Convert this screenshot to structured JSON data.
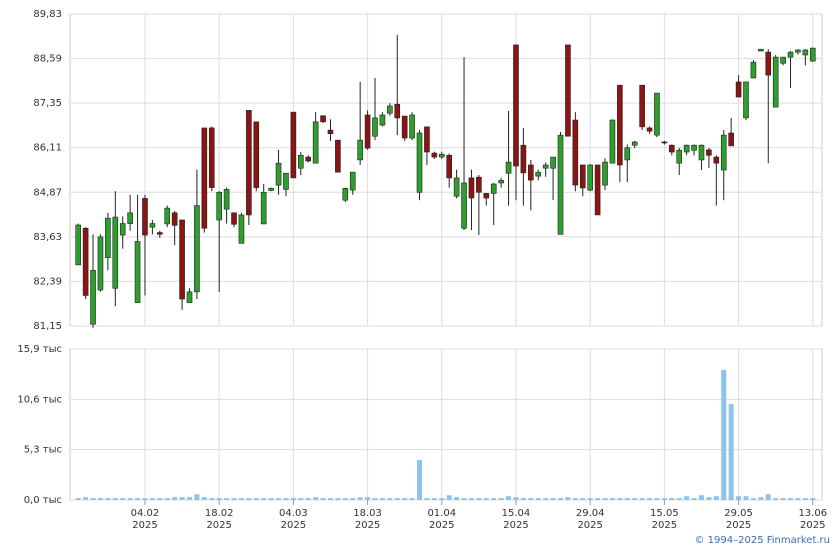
{
  "chart_data": [
    {
      "type": "candlestick",
      "open": [
        82.85,
        83.87,
        81.2,
        82.15,
        83.05,
        82.2,
        83.68,
        84.0,
        81.8,
        84.7,
        83.9,
        83.75,
        83.99,
        84.3,
        84.1,
        81.8,
        82.1,
        86.66,
        86.66,
        84.1,
        84.4,
        84.3,
        83.45,
        87.15,
        86.83,
        83.99,
        84.92,
        85.07,
        84.95,
        87.1,
        85.54,
        85.85,
        85.68,
        87.0,
        86.6,
        86.32,
        84.65,
        84.93,
        85.77,
        87.02,
        86.43,
        86.74,
        87.07,
        87.32,
        86.99,
        86.38,
        84.87,
        86.69,
        85.96,
        85.85,
        85.9,
        84.76,
        83.87,
        85.27,
        85.29,
        84.84,
        84.84,
        85.13,
        85.4,
        88.97,
        86.18,
        85.63,
        85.32,
        85.54,
        85.54,
        83.7,
        88.97,
        86.88,
        85.63,
        84.93,
        85.63,
        85.07,
        85.68,
        87.85,
        85.77,
        86.18,
        87.85,
        86.66,
        86.46,
        86.27,
        86.18,
        85.68,
        85.99,
        86.04,
        85.77,
        86.05,
        85.85,
        85.49,
        86.52,
        87.94,
        86.94,
        88.05,
        88.8,
        88.77,
        87.24,
        88.46,
        88.63,
        88.77,
        88.69,
        88.52
      ],
      "high": [
        84.0,
        83.9,
        83.7,
        83.7,
        84.3,
        84.9,
        84.2,
        84.8,
        84.8,
        84.8,
        84.1,
        83.8,
        84.5,
        84.35,
        84.1,
        82.2,
        85.5,
        86.66,
        86.7,
        84.9,
        85.0,
        84.3,
        84.3,
        87.15,
        86.83,
        85.1,
        85.0,
        86.05,
        85.4,
        87.1,
        85.99,
        85.9,
        87.1,
        87.0,
        86.9,
        86.32,
        85.0,
        85.43,
        87.94,
        87.15,
        88.05,
        87.1,
        87.35,
        89.25,
        87.0,
        87.1,
        86.6,
        86.69,
        86.0,
        86.0,
        85.95,
        85.5,
        88.63,
        85.5,
        85.35,
        84.84,
        85.13,
        85.27,
        87.13,
        88.97,
        86.66,
        85.77,
        85.5,
        85.7,
        85.85,
        86.55,
        88.97,
        87.1,
        85.63,
        85.65,
        85.63,
        85.82,
        86.9,
        87.85,
        86.2,
        86.3,
        87.85,
        86.7,
        87.63,
        86.3,
        86.2,
        86.1,
        86.2,
        86.2,
        86.2,
        86.1,
        85.9,
        86.6,
        86.94,
        88.13,
        87.94,
        88.55,
        88.85,
        88.85,
        88.69,
        88.63,
        88.8,
        88.85,
        88.85,
        88.9
      ],
      "low": [
        82.85,
        81.9,
        81.1,
        82.1,
        82.7,
        81.7,
        83.3,
        83.8,
        81.8,
        82.0,
        83.7,
        83.6,
        83.9,
        83.4,
        81.6,
        81.8,
        81.9,
        83.75,
        84.9,
        82.1,
        84.0,
        83.9,
        83.45,
        83.96,
        84.9,
        83.99,
        84.9,
        84.8,
        84.76,
        85.27,
        85.35,
        85.7,
        85.68,
        86.8,
        86.3,
        85.43,
        84.6,
        84.8,
        85.63,
        86.05,
        86.32,
        86.7,
        87.0,
        86.46,
        86.3,
        86.32,
        84.65,
        85.63,
        85.8,
        85.8,
        85.0,
        84.7,
        83.82,
        83.82,
        83.68,
        84.5,
        83.96,
        85.0,
        84.5,
        84.65,
        84.5,
        84.37,
        85.2,
        85.3,
        84.65,
        83.7,
        86.43,
        84.9,
        84.76,
        84.9,
        84.24,
        84.93,
        85.68,
        85.15,
        85.15,
        86.1,
        86.6,
        86.5,
        86.4,
        86.2,
        85.9,
        85.35,
        85.9,
        85.9,
        85.49,
        85.55,
        84.5,
        84.65,
        86.16,
        87.52,
        86.88,
        88.05,
        88.8,
        85.68,
        87.24,
        88.4,
        87.77,
        88.7,
        88.4,
        88.5
      ],
      "close": [
        83.96,
        82.0,
        82.7,
        83.63,
        84.15,
        84.18,
        84.0,
        84.3,
        83.5,
        83.68,
        84.0,
        83.7,
        84.43,
        83.95,
        81.9,
        82.1,
        84.5,
        83.87,
        85.0,
        84.87,
        84.95,
        83.98,
        84.24,
        84.24,
        85.0,
        84.87,
        84.98,
        85.68,
        85.4,
        85.27,
        85.9,
        85.74,
        86.83,
        86.83,
        86.5,
        85.43,
        84.98,
        85.43,
        86.32,
        86.1,
        86.94,
        87.02,
        87.27,
        86.94,
        86.38,
        87.02,
        86.52,
        85.99,
        85.85,
        85.93,
        85.27,
        85.27,
        85.13,
        84.71,
        84.87,
        84.71,
        85.1,
        85.2,
        85.71,
        85.6,
        85.41,
        85.21,
        85.43,
        85.63,
        85.85,
        86.46,
        86.43,
        85.07,
        84.99,
        85.63,
        84.24,
        85.71,
        86.88,
        85.63,
        86.11,
        86.27,
        86.69,
        86.57,
        87.63,
        86.25,
        85.99,
        86.04,
        86.18,
        86.18,
        86.18,
        85.9,
        85.68,
        86.46,
        86.16,
        87.52,
        87.94,
        88.49,
        88.85,
        88.13,
        88.63,
        88.63,
        88.77,
        88.83,
        88.83,
        88.88
      ],
      "up_color": "#2e9e2e",
      "down_color": "#8b1414",
      "ylim": [
        81.15,
        89.83
      ],
      "yticks": [
        {
          "value": 81.15,
          "label": "81,15"
        },
        {
          "value": 82.39,
          "label": "82,39"
        },
        {
          "value": 83.63,
          "label": "83,63"
        },
        {
          "value": 84.87,
          "label": "84,87"
        },
        {
          "value": 86.11,
          "label": "86,11"
        },
        {
          "value": 87.35,
          "label": "87,35"
        },
        {
          "value": 88.59,
          "label": "88,59"
        },
        {
          "value": 89.83,
          "label": "89,83"
        }
      ],
      "grid": true
    },
    {
      "type": "bar",
      "categories": [
        null,
        null,
        null,
        null,
        null,
        null,
        null,
        null,
        null,
        "04.02 2025",
        null,
        null,
        null,
        null,
        null,
        null,
        null,
        null,
        null,
        "18.02 2025",
        null,
        null,
        null,
        null,
        null,
        null,
        null,
        null,
        null,
        "04.03 2025",
        null,
        null,
        null,
        null,
        null,
        null,
        null,
        null,
        null,
        "18.03 2025",
        null,
        null,
        null,
        null,
        null,
        null,
        null,
        null,
        null,
        "01.04 2025",
        null,
        null,
        null,
        null,
        null,
        null,
        null,
        null,
        null,
        "15.04 2025",
        null,
        null,
        null,
        null,
        null,
        null,
        null,
        null,
        null,
        "29.04 2025",
        null,
        null,
        null,
        null,
        null,
        null,
        null,
        null,
        null,
        "15.05 2025",
        null,
        null,
        null,
        null,
        null,
        null,
        null,
        null,
        null,
        "29.05 2025",
        null,
        null,
        null,
        null,
        null,
        null,
        null,
        null,
        null,
        "13.06 2025"
      ],
      "values": [
        0.2,
        0.3,
        0.2,
        0.2,
        0.2,
        0.2,
        0.2,
        0.2,
        0.2,
        0.2,
        0.2,
        0.2,
        0.2,
        0.3,
        0.3,
        0.3,
        0.6,
        0.3,
        0.2,
        0.2,
        0.2,
        0.2,
        0.2,
        0.2,
        0.2,
        0.2,
        0.2,
        0.2,
        0.2,
        0.2,
        0.2,
        0.2,
        0.3,
        0.2,
        0.2,
        0.2,
        0.2,
        0.2,
        0.3,
        0.3,
        0.2,
        0.2,
        0.2,
        0.2,
        0.2,
        0.2,
        4.2,
        0.2,
        0.2,
        0.2,
        0.5,
        0.3,
        0.2,
        0.2,
        0.2,
        0.2,
        0.2,
        0.2,
        0.4,
        0.3,
        0.2,
        0.2,
        0.2,
        0.2,
        0.2,
        0.2,
        0.3,
        0.2,
        0.2,
        0.2,
        0.2,
        0.2,
        0.2,
        0.2,
        0.2,
        0.2,
        0.2,
        0.2,
        0.2,
        0.2,
        0.2,
        0.2,
        0.4,
        0.2,
        0.5,
        0.3,
        0.4,
        13.7,
        10.1,
        0.4,
        0.4,
        0.2,
        0.3,
        0.6,
        0.2,
        0.2,
        0.2,
        0.2,
        0.2,
        0.2
      ],
      "color": "#8ec3ee",
      "ylim": [
        0,
        15.9
      ],
      "yticks": [
        {
          "value": 0,
          "label": "0,0 тыс"
        },
        {
          "value": 5.3,
          "label": "5,3 тыс"
        },
        {
          "value": 10.6,
          "label": "10,6 тыс"
        },
        {
          "value": 15.9,
          "label": "15,9 тыс"
        }
      ],
      "grid": true
    }
  ],
  "source": "© 1994–2025 Finmarket.ru"
}
